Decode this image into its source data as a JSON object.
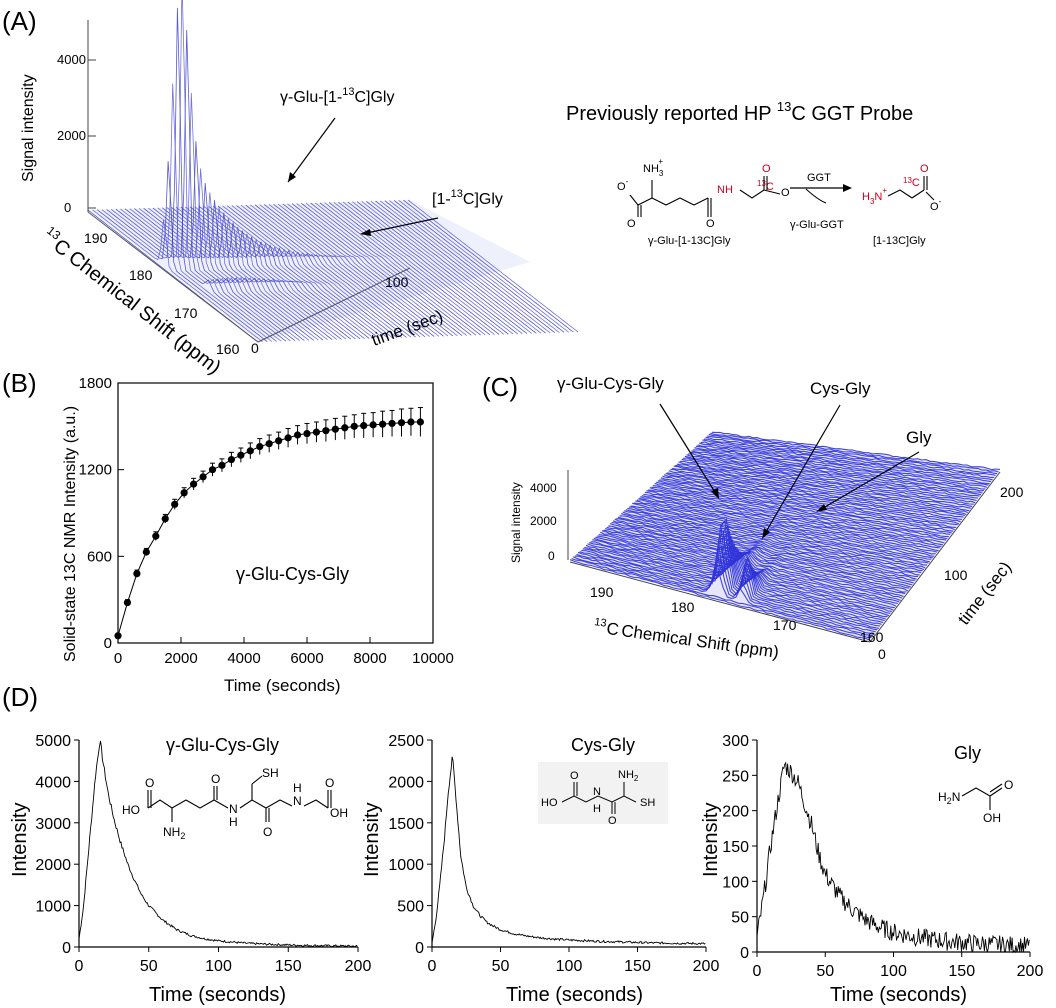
{
  "panel_labels": {
    "a": "(A)",
    "b": "(B)",
    "c": "(C)",
    "d": "(D)"
  },
  "panel_a": {
    "ylabel": "Signal intensity",
    "zticks": [
      "4000",
      "2000",
      "0"
    ],
    "shift_label": "Chemical Shift (ppm)",
    "shift_sup": "13",
    "shift_c": "C",
    "shift_ticks": [
      "190",
      "180",
      "170",
      "160"
    ],
    "time_label": "time (sec)",
    "time_ticks": [
      "0",
      "100"
    ],
    "ann_glu_gly": {
      "pre": "γ-Glu-[1-",
      "sup": "13",
      "post": "C]Gly"
    },
    "ann_gly": {
      "pre": "[1-",
      "sup": "13",
      "post": "C]Gly"
    },
    "probe_title": {
      "pre": "Previously reported HP ",
      "sup": "13",
      "post": "C GGT Probe"
    },
    "scheme": {
      "nh3": "NH",
      "nh3_sub": "3",
      "nh3_sup": "+",
      "o_minus": "O",
      "minus": "-",
      "o": "O",
      "nh": "NH",
      "c13": "13",
      "c13_c": "C",
      "ggt": "GGT",
      "byproduct": "γ-Glu-GGT",
      "h3n": "H",
      "h3n_sub": "3",
      "h3n_n": "N",
      "h3n_sup": "+",
      "substrate": "γ-Glu-[1-13C]Gly",
      "product": "[1-13C]Gly"
    }
  },
  "panel_b": {
    "ylabel": "Solid-state 13C NMR Intensity (a.u.)",
    "xlabel": "Time (seconds)",
    "legend": "γ-Glu-Cys-Gly",
    "chart_data": {
      "type": "scatter",
      "title": "",
      "xlabel": "Time (seconds)",
      "ylabel": "Solid-state 13C NMR Intensity (a.u.)",
      "xlim": [
        0,
        10000
      ],
      "ylim": [
        0,
        1800
      ],
      "xticks": [
        0,
        2000,
        4000,
        6000,
        8000,
        10000
      ],
      "yticks": [
        0,
        600,
        1200,
        1800
      ],
      "x": [
        0,
        300,
        600,
        900,
        1200,
        1500,
        1800,
        2100,
        2400,
        2700,
        3000,
        3300,
        3600,
        3900,
        4200,
        4500,
        4800,
        5100,
        5400,
        5700,
        6000,
        6300,
        6600,
        6900,
        7200,
        7500,
        7800,
        8100,
        8400,
        8700,
        9000,
        9300,
        9600
      ],
      "y": [
        50,
        280,
        480,
        630,
        740,
        860,
        960,
        1040,
        1100,
        1150,
        1200,
        1230,
        1270,
        1300,
        1330,
        1360,
        1380,
        1400,
        1420,
        1440,
        1450,
        1460,
        1470,
        1480,
        1490,
        1500,
        1505,
        1510,
        1515,
        1520,
        1525,
        1530,
        1530
      ],
      "yerr": [
        15,
        20,
        25,
        25,
        30,
        30,
        35,
        35,
        40,
        40,
        45,
        45,
        50,
        50,
        55,
        55,
        60,
        60,
        65,
        65,
        70,
        70,
        75,
        75,
        80,
        80,
        85,
        85,
        90,
        90,
        95,
        95,
        100
      ]
    }
  },
  "panel_c": {
    "ylabel": "Signal intensity",
    "zticks": [
      "4000",
      "2000",
      "0"
    ],
    "shift_label": "Chemical Shift (ppm)",
    "shift_sup": "13",
    "shift_c": "C",
    "shift_ticks": [
      "190",
      "180",
      "170",
      "160"
    ],
    "time_label": "time (sec)",
    "time_ticks": [
      "0",
      "100",
      "200"
    ],
    "ann_gcg": "γ-Glu-Cys-Gly",
    "ann_cg": "Cys-Gly",
    "ann_g": "Gly"
  },
  "panel_d": {
    "chart_data": [
      {
        "type": "line",
        "title": "γ-Glu-Cys-Gly",
        "xlabel": "Time (seconds)",
        "ylabel": "Intensity",
        "xlim": [
          0,
          200
        ],
        "ylim": [
          0,
          5000
        ],
        "xticks": [
          0,
          50,
          100,
          150,
          200
        ],
        "yticks": [
          0,
          1000,
          2000,
          3000,
          4000,
          5000
        ],
        "x": [
          0,
          3,
          6,
          9,
          12,
          15,
          18,
          21,
          25,
          30,
          35,
          40,
          45,
          50,
          60,
          70,
          80,
          90,
          100,
          120,
          140,
          160,
          180,
          200
        ],
        "y": [
          200,
          900,
          2000,
          3100,
          4200,
          5000,
          4300,
          3700,
          3100,
          2500,
          2000,
          1600,
          1250,
          1000,
          650,
          420,
          280,
          200,
          150,
          90,
          60,
          40,
          30,
          20
        ]
      },
      {
        "type": "line",
        "title": "Cys-Gly",
        "xlabel": "Time (seconds)",
        "ylabel": "Intensity",
        "xlim": [
          0,
          200
        ],
        "ylim": [
          0,
          2500
        ],
        "xticks": [
          0,
          50,
          100,
          150,
          200
        ],
        "yticks": [
          0,
          500,
          1000,
          1500,
          2000,
          2500
        ],
        "x": [
          0,
          3,
          6,
          9,
          12,
          15,
          18,
          21,
          25,
          30,
          35,
          40,
          45,
          50,
          60,
          70,
          80,
          90,
          100,
          120,
          140,
          160,
          180,
          200
        ],
        "y": [
          50,
          350,
          800,
          1300,
          1900,
          2300,
          1700,
          1100,
          720,
          500,
          380,
          300,
          250,
          210,
          160,
          130,
          110,
          95,
          85,
          70,
          60,
          50,
          45,
          40
        ]
      },
      {
        "type": "line",
        "title": "Gly",
        "xlabel": "Time (seconds)",
        "ylabel": "Intensity",
        "xlim": [
          0,
          200
        ],
        "ylim": [
          0,
          300
        ],
        "xticks": [
          0,
          50,
          100,
          150,
          200
        ],
        "yticks": [
          0,
          50,
          100,
          150,
          200,
          250,
          300
        ],
        "x": [
          0,
          5,
          10,
          15,
          20,
          25,
          30,
          35,
          40,
          45,
          50,
          60,
          70,
          80,
          90,
          100,
          120,
          140,
          160,
          180,
          200
        ],
        "y": [
          20,
          80,
          150,
          210,
          265,
          255,
          240,
          210,
          180,
          140,
          110,
          80,
          60,
          45,
          35,
          28,
          20,
          15,
          12,
          10,
          8
        ]
      }
    ],
    "struct_gcg": {
      "hoc": "HO",
      "o": "O",
      "nh2": "NH",
      "nh2_sub": "2",
      "n": "N",
      "h": "H",
      "sh": "SH",
      "oh": "OH"
    },
    "struct_cg": {
      "ho": "HO",
      "nh2": "NH",
      "nh2_sub": "2",
      "n": "N",
      "h": "H",
      "sh": "SH",
      "o": "O"
    },
    "struct_g": {
      "h2n": "H",
      "h2n_sub": "2",
      "h2n_n": "N",
      "oh": "OH",
      "o": "O"
    }
  }
}
